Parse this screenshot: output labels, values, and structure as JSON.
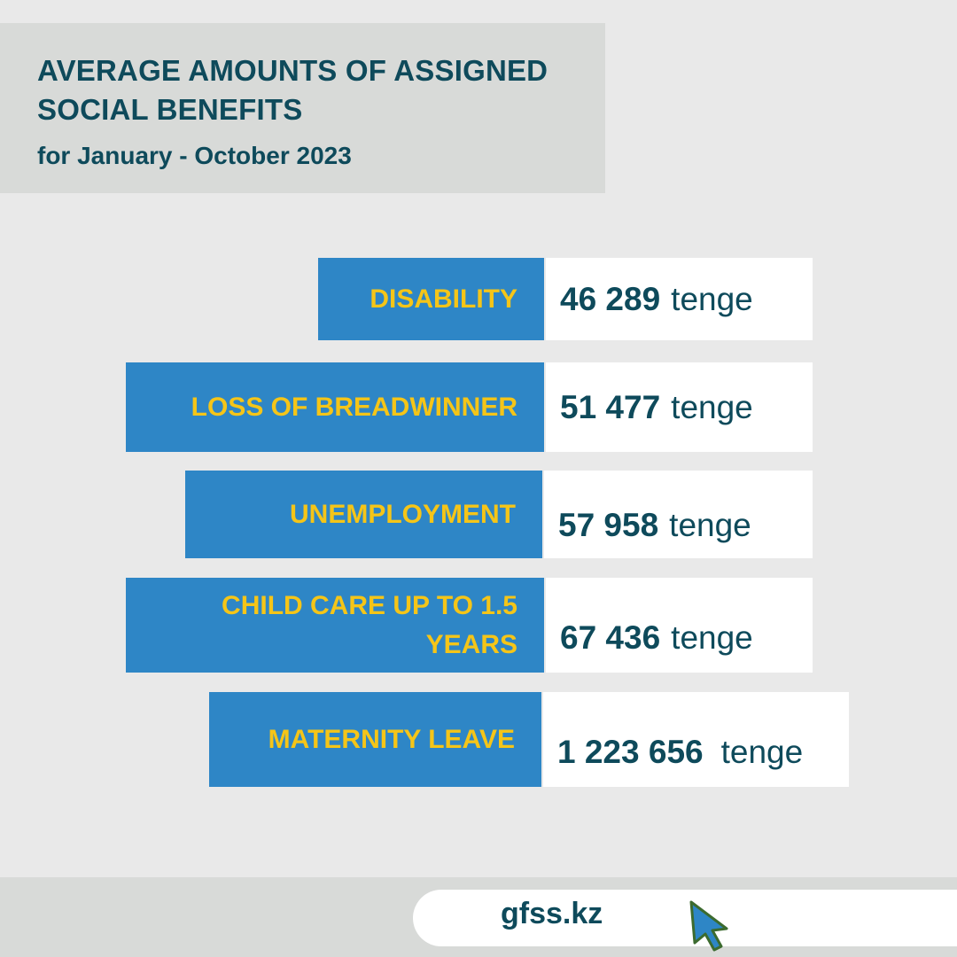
{
  "header": {
    "title": "AVERAGE AMOUNTS OF ASSIGNED SOCIAL BENEFITS",
    "subtitle": "for January - October 2023"
  },
  "benefits": [
    {
      "label": "DISABILITY",
      "amount": "46 289",
      "unit": "tenge"
    },
    {
      "label": "LOSS OF BREADWINNER",
      "amount": "51 477",
      "unit": "tenge"
    },
    {
      "label": "UNEMPLOYMENT",
      "amount": "57 958",
      "unit": "tenge"
    },
    {
      "label": "CHILD CARE UP TO 1.5 YEARS",
      "amount": "67 436",
      "unit": "tenge"
    },
    {
      "label": "MATERNITY LEAVE",
      "amount": "1 223 656",
      "unit": "tenge"
    }
  ],
  "footer": {
    "site": "gfss.kz",
    "cursor_icon": "mouse-pointer-icon"
  },
  "colors": {
    "background": "#e9e9e9",
    "header_box": "#d8dad8",
    "label_bg": "#2e86c6",
    "label_text": "#f5c518",
    "value_bg": "#ffffff",
    "dark_teal": "#0e4a5b"
  }
}
